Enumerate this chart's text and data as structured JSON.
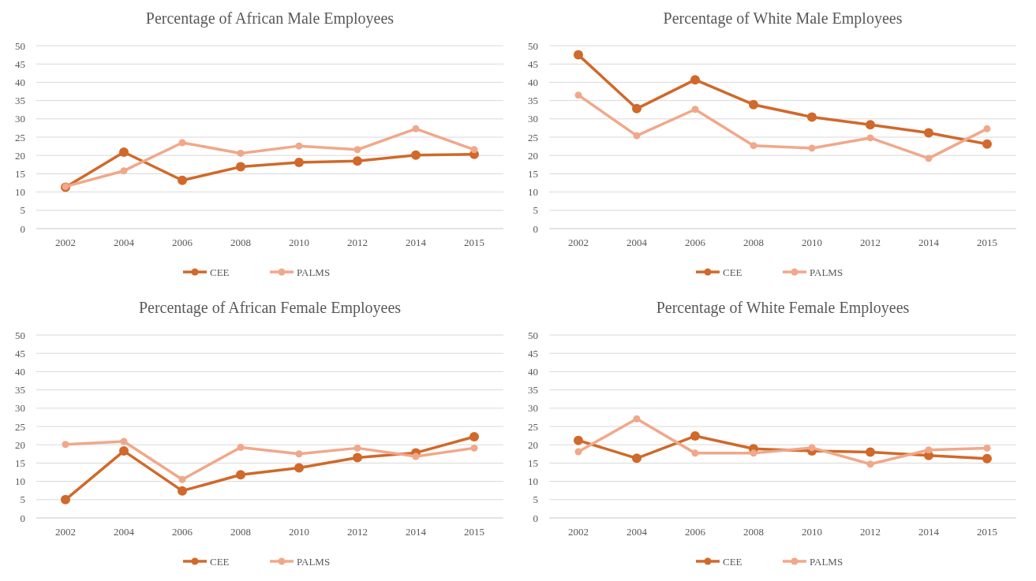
{
  "chart_data": [
    {
      "type": "line",
      "title": "Percentage of African Male Employees",
      "categories": [
        "2002",
        "2004",
        "2006",
        "2008",
        "2010",
        "2012",
        "2014",
        "2015"
      ],
      "series": [
        {
          "name": "CEE",
          "color": "#d0692a",
          "values": [
            11.3,
            20.9,
            13.2,
            16.9,
            18.1,
            18.5,
            20.1,
            20.3
          ]
        },
        {
          "name": "PALMS",
          "color": "#f0a88a",
          "values": [
            11.5,
            15.8,
            23.5,
            20.6,
            22.6,
            21.6,
            27.3,
            21.6
          ]
        }
      ],
      "ylim": [
        0,
        50
      ],
      "yticks": [
        0,
        5,
        10,
        15,
        20,
        25,
        30,
        35,
        40,
        45,
        50
      ],
      "grid": "y",
      "legend": "bottom",
      "marker": "circle"
    },
    {
      "type": "line",
      "title": "Percentage of White Male Employees",
      "categories": [
        "2002",
        "2004",
        "2006",
        "2008",
        "2010",
        "2012",
        "2014",
        "2015"
      ],
      "series": [
        {
          "name": "CEE",
          "color": "#d0692a",
          "values": [
            47.5,
            32.8,
            40.7,
            33.9,
            30.5,
            28.4,
            26.2,
            23.1
          ]
        },
        {
          "name": "PALMS",
          "color": "#f0a88a",
          "values": [
            36.5,
            25.4,
            32.6,
            22.7,
            22.0,
            24.8,
            19.2,
            27.3
          ]
        }
      ],
      "ylim": [
        0,
        50
      ],
      "yticks": [
        0,
        5,
        10,
        15,
        20,
        25,
        30,
        35,
        40,
        45,
        50
      ],
      "grid": "y",
      "legend": "bottom",
      "marker": "circle"
    },
    {
      "type": "line",
      "title": "Percentage of African Female Employees",
      "categories": [
        "2002",
        "2004",
        "2006",
        "2008",
        "2010",
        "2012",
        "2014",
        "2015"
      ],
      "series": [
        {
          "name": "CEE",
          "color": "#d0692a",
          "values": [
            5.0,
            18.3,
            7.4,
            11.8,
            13.7,
            16.5,
            17.8,
            22.2
          ]
        },
        {
          "name": "PALMS",
          "color": "#f0a88a",
          "values": [
            20.1,
            20.9,
            10.5,
            19.3,
            17.5,
            19.1,
            16.8,
            19.1
          ]
        }
      ],
      "ylim": [
        0,
        50
      ],
      "yticks": [
        0,
        5,
        10,
        15,
        20,
        25,
        30,
        35,
        40,
        45,
        50
      ],
      "grid": "y",
      "legend": "bottom",
      "marker": "circle"
    },
    {
      "type": "line",
      "title": "Percentage of White Female Employees",
      "categories": [
        "2002",
        "2004",
        "2006",
        "2008",
        "2010",
        "2012",
        "2014",
        "2015"
      ],
      "series": [
        {
          "name": "CEE",
          "color": "#d0692a",
          "values": [
            21.2,
            16.3,
            22.4,
            18.9,
            18.3,
            18.0,
            17.1,
            16.2
          ]
        },
        {
          "name": "PALMS",
          "color": "#f0a88a",
          "values": [
            18.1,
            27.1,
            17.7,
            17.7,
            19.2,
            14.7,
            18.6,
            19.1
          ]
        }
      ],
      "ylim": [
        0,
        50
      ],
      "yticks": [
        0,
        5,
        10,
        15,
        20,
        25,
        30,
        35,
        40,
        45,
        50
      ],
      "grid": "y",
      "legend": "bottom",
      "marker": "circle"
    }
  ]
}
